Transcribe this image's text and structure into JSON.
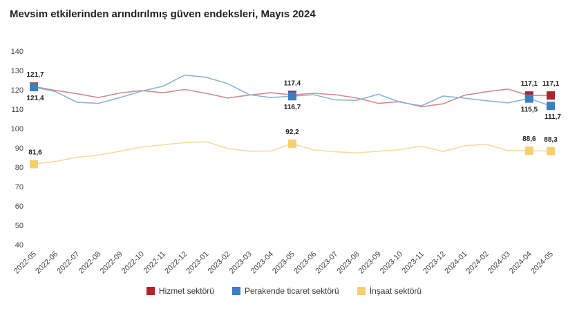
{
  "chart_data": {
    "type": "line",
    "title": "Mevsim etkilerinden arındırılmış güven endeksleri, Mayıs 2024",
    "ylim": [
      40,
      140
    ],
    "yticks": [
      40,
      50,
      60,
      70,
      80,
      90,
      100,
      110,
      120,
      130,
      140
    ],
    "grid": false,
    "legend_position": "bottom",
    "x": [
      "2022-05",
      "2022-06",
      "2022-07",
      "2022-08",
      "2022-09",
      "2022-10",
      "2022-11",
      "2022-12",
      "2023-01",
      "2023-02",
      "2023-03",
      "2023-04",
      "2023-05",
      "2023-06",
      "2023-07",
      "2023-08",
      "2023-09",
      "2023-10",
      "2023-11",
      "2023-12",
      "2024-01",
      "2024-02",
      "2024-03",
      "2024-04",
      "2024-05"
    ],
    "series": [
      {
        "name": "Hizmet sektörü",
        "color": "#b0242a",
        "line_color": "#d4898c",
        "values": [
          121.7,
          119.7,
          118.0,
          116.0,
          118.4,
          119.6,
          118.5,
          120.2,
          118.2,
          115.8,
          117.3,
          118.5,
          117.4,
          118.2,
          117.5,
          115.8,
          113.0,
          113.9,
          111.3,
          112.8,
          117.2,
          119.0,
          120.4,
          117.1,
          117.1
        ],
        "highlight_indices": [
          0,
          12,
          23,
          24
        ]
      },
      {
        "name": "Perakende ticaret sektörü",
        "color": "#3a7fc1",
        "line_color": "#8ab3d8",
        "values": [
          121.4,
          119.1,
          113.6,
          113.0,
          116.0,
          119.3,
          121.9,
          127.6,
          126.5,
          123.2,
          117.5,
          116.0,
          116.7,
          117.5,
          114.8,
          114.6,
          117.7,
          113.6,
          111.8,
          116.8,
          115.7,
          114.4,
          113.3,
          115.5,
          111.7
        ],
        "highlight_indices": [
          0,
          12,
          23,
          24
        ]
      },
      {
        "name": "İnşaat sektörü",
        "color": "#f6cf72",
        "line_color": "#f6dc9c",
        "values": [
          81.6,
          83.0,
          85.1,
          86.3,
          88.3,
          90.4,
          91.6,
          92.7,
          93.2,
          89.7,
          88.3,
          88.4,
          92.2,
          88.9,
          88.0,
          87.4,
          88.3,
          89.1,
          90.9,
          88.1,
          91.1,
          91.9,
          88.6,
          88.6,
          88.3
        ],
        "highlight_indices": [
          0,
          12,
          23,
          24
        ]
      }
    ],
    "data_labels": [
      {
        "series": 0,
        "index": 0,
        "text": "121,7"
      },
      {
        "series": 1,
        "index": 0,
        "text": "121,4"
      },
      {
        "series": 2,
        "index": 0,
        "text": "81,6"
      },
      {
        "series": 0,
        "index": 12,
        "text": "117,4"
      },
      {
        "series": 1,
        "index": 12,
        "text": "116,7"
      },
      {
        "series": 2,
        "index": 12,
        "text": "92,2"
      },
      {
        "series": 0,
        "index": 23,
        "text": "117,1"
      },
      {
        "series": 1,
        "index": 23,
        "text": "115,5"
      },
      {
        "series": 2,
        "index": 23,
        "text": "88,6"
      },
      {
        "series": 0,
        "index": 24,
        "text": "117,1"
      },
      {
        "series": 1,
        "index": 24,
        "text": "111,7"
      },
      {
        "series": 2,
        "index": 24,
        "text": "88,3"
      }
    ]
  }
}
